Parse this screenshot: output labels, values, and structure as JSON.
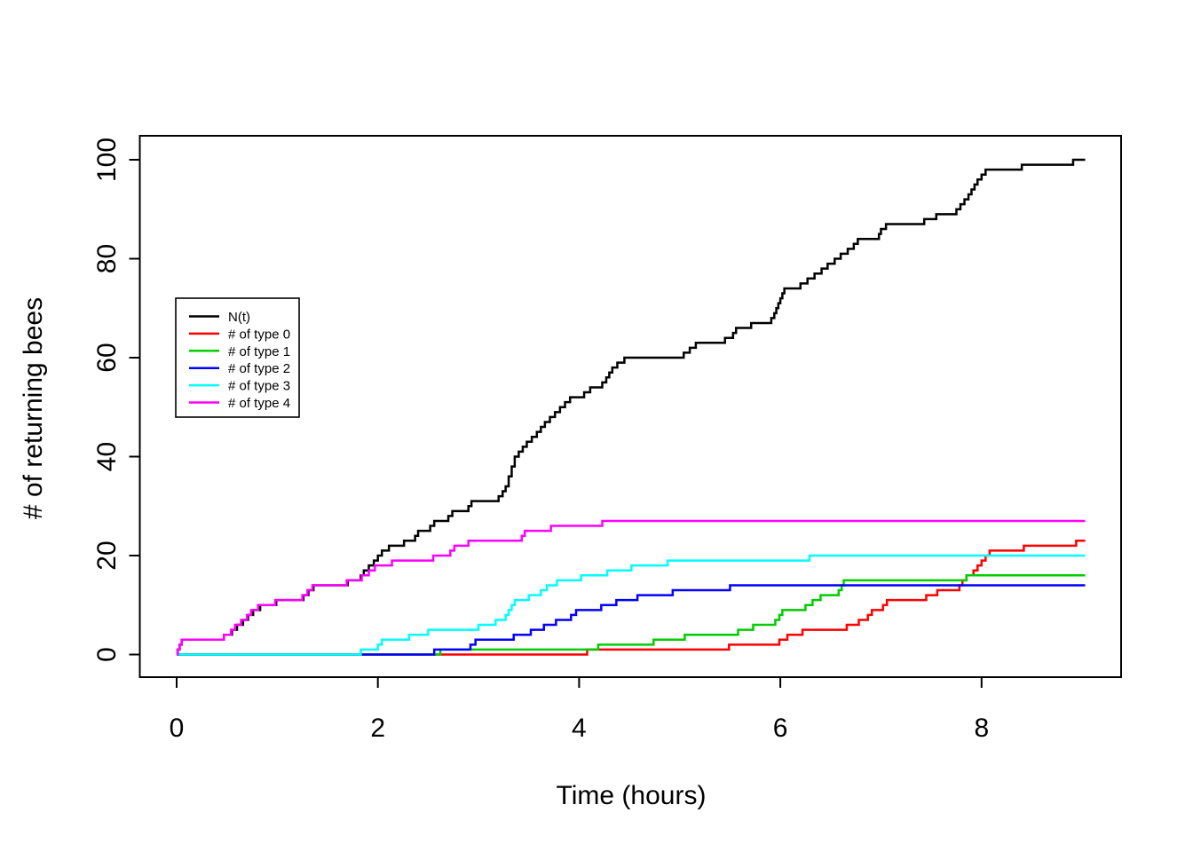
{
  "chart_data": {
    "type": "line",
    "interpolation": "step-after",
    "title": "",
    "xlabel": "Time (hours)",
    "ylabel": "# of returning bees",
    "x_ticks": [
      0,
      2,
      4,
      6,
      8
    ],
    "y_ticks": [
      0,
      20,
      40,
      60,
      80,
      100
    ],
    "xlim": [
      -0.37,
      9.39
    ],
    "ylim": [
      -4.2,
      104.2
    ],
    "x_start": 0,
    "x_end": 9.03,
    "start_value": 0,
    "grid": false,
    "legend_position": "upper-left-inside",
    "series": [
      {
        "name": "N(t)",
        "color": "#000000",
        "final_value": 100,
        "points": [
          [
            0.01,
            1
          ],
          [
            0.03,
            2
          ],
          [
            0.05,
            3
          ],
          [
            0.47,
            4
          ],
          [
            0.55,
            5
          ],
          [
            0.6,
            6
          ],
          [
            0.66,
            7
          ],
          [
            0.71,
            8
          ],
          [
            0.76,
            9
          ],
          [
            0.83,
            10
          ],
          [
            0.99,
            11
          ],
          [
            1.26,
            12
          ],
          [
            1.31,
            13
          ],
          [
            1.36,
            14
          ],
          [
            1.7,
            15
          ],
          [
            1.83,
            16
          ],
          [
            1.86,
            17
          ],
          [
            1.91,
            18
          ],
          [
            1.96,
            19
          ],
          [
            2.0,
            20
          ],
          [
            2.04,
            21
          ],
          [
            2.11,
            22
          ],
          [
            2.26,
            23
          ],
          [
            2.37,
            24
          ],
          [
            2.4,
            25
          ],
          [
            2.52,
            26
          ],
          [
            2.56,
            27
          ],
          [
            2.7,
            28
          ],
          [
            2.74,
            29
          ],
          [
            2.9,
            30
          ],
          [
            2.93,
            31
          ],
          [
            3.2,
            32
          ],
          [
            3.24,
            33
          ],
          [
            3.27,
            34
          ],
          [
            3.3,
            36
          ],
          [
            3.33,
            38
          ],
          [
            3.36,
            40
          ],
          [
            3.4,
            41
          ],
          [
            3.44,
            42
          ],
          [
            3.48,
            43
          ],
          [
            3.53,
            44
          ],
          [
            3.58,
            45
          ],
          [
            3.62,
            46
          ],
          [
            3.66,
            47
          ],
          [
            3.71,
            48
          ],
          [
            3.76,
            49
          ],
          [
            3.81,
            50
          ],
          [
            3.86,
            51
          ],
          [
            3.91,
            52
          ],
          [
            4.05,
            53
          ],
          [
            4.11,
            54
          ],
          [
            4.23,
            55
          ],
          [
            4.27,
            56
          ],
          [
            4.3,
            57
          ],
          [
            4.33,
            58
          ],
          [
            4.38,
            59
          ],
          [
            4.45,
            60
          ],
          [
            5.04,
            61
          ],
          [
            5.1,
            62
          ],
          [
            5.16,
            63
          ],
          [
            5.45,
            64
          ],
          [
            5.53,
            65
          ],
          [
            5.56,
            66
          ],
          [
            5.71,
            67
          ],
          [
            5.91,
            68
          ],
          [
            5.94,
            69
          ],
          [
            5.96,
            70
          ],
          [
            5.98,
            71
          ],
          [
            6.0,
            72
          ],
          [
            6.02,
            73
          ],
          [
            6.04,
            74
          ],
          [
            6.2,
            75
          ],
          [
            6.27,
            76
          ],
          [
            6.34,
            77
          ],
          [
            6.41,
            78
          ],
          [
            6.47,
            79
          ],
          [
            6.54,
            80
          ],
          [
            6.6,
            81
          ],
          [
            6.67,
            82
          ],
          [
            6.73,
            83
          ],
          [
            6.77,
            84
          ],
          [
            6.98,
            85
          ],
          [
            7.0,
            86
          ],
          [
            7.05,
            87
          ],
          [
            7.43,
            88
          ],
          [
            7.55,
            89
          ],
          [
            7.75,
            90
          ],
          [
            7.79,
            91
          ],
          [
            7.83,
            92
          ],
          [
            7.87,
            93
          ],
          [
            7.9,
            94
          ],
          [
            7.93,
            95
          ],
          [
            7.96,
            96
          ],
          [
            8.0,
            97
          ],
          [
            8.04,
            98
          ],
          [
            8.4,
            99
          ],
          [
            8.91,
            100
          ]
        ]
      },
      {
        "name": "# of type 0",
        "color": "#FF0000",
        "final_value": 23,
        "points": [
          [
            4.08,
            1
          ],
          [
            5.49,
            2
          ],
          [
            5.99,
            3
          ],
          [
            6.07,
            4
          ],
          [
            6.22,
            5
          ],
          [
            6.66,
            6
          ],
          [
            6.78,
            7
          ],
          [
            6.87,
            8
          ],
          [
            6.91,
            9
          ],
          [
            7.02,
            10
          ],
          [
            7.06,
            11
          ],
          [
            7.45,
            12
          ],
          [
            7.56,
            13
          ],
          [
            7.78,
            14
          ],
          [
            7.81,
            15
          ],
          [
            7.85,
            16
          ],
          [
            7.92,
            17
          ],
          [
            7.96,
            18
          ],
          [
            8.0,
            19
          ],
          [
            8.04,
            20
          ],
          [
            8.08,
            21
          ],
          [
            8.42,
            22
          ],
          [
            8.94,
            23
          ]
        ]
      },
      {
        "name": "# of type 1",
        "color": "#00CD00",
        "final_value": 16,
        "points": [
          [
            2.62,
            1
          ],
          [
            4.19,
            2
          ],
          [
            4.74,
            3
          ],
          [
            5.05,
            4
          ],
          [
            5.58,
            5
          ],
          [
            5.73,
            6
          ],
          [
            5.95,
            7
          ],
          [
            5.99,
            8
          ],
          [
            6.02,
            9
          ],
          [
            6.25,
            10
          ],
          [
            6.32,
            11
          ],
          [
            6.4,
            12
          ],
          [
            6.58,
            13
          ],
          [
            6.61,
            14
          ],
          [
            6.63,
            15
          ],
          [
            7.85,
            16
          ]
        ]
      },
      {
        "name": "# of type 2",
        "color": "#0000FF",
        "final_value": 14,
        "points": [
          [
            2.56,
            1
          ],
          [
            2.92,
            2
          ],
          [
            2.97,
            3
          ],
          [
            3.35,
            4
          ],
          [
            3.52,
            5
          ],
          [
            3.65,
            6
          ],
          [
            3.77,
            7
          ],
          [
            3.92,
            8
          ],
          [
            3.97,
            9
          ],
          [
            4.22,
            10
          ],
          [
            4.37,
            11
          ],
          [
            4.58,
            12
          ],
          [
            4.93,
            13
          ],
          [
            5.5,
            14
          ]
        ]
      },
      {
        "name": "# of type 3",
        "color": "#00FFFF",
        "final_value": 20,
        "points": [
          [
            1.83,
            1
          ],
          [
            2.0,
            2
          ],
          [
            2.04,
            3
          ],
          [
            2.31,
            4
          ],
          [
            2.5,
            5
          ],
          [
            3.0,
            6
          ],
          [
            3.17,
            7
          ],
          [
            3.27,
            8
          ],
          [
            3.3,
            9
          ],
          [
            3.33,
            10
          ],
          [
            3.36,
            11
          ],
          [
            3.5,
            12
          ],
          [
            3.62,
            13
          ],
          [
            3.68,
            14
          ],
          [
            3.78,
            15
          ],
          [
            4.02,
            16
          ],
          [
            4.28,
            17
          ],
          [
            4.52,
            18
          ],
          [
            4.88,
            19
          ],
          [
            6.29,
            20
          ]
        ]
      },
      {
        "name": "# of type 4",
        "color": "#FF00FF",
        "final_value": 27,
        "points": [
          [
            0.01,
            1
          ],
          [
            0.03,
            2
          ],
          [
            0.05,
            3
          ],
          [
            0.47,
            4
          ],
          [
            0.54,
            5
          ],
          [
            0.58,
            6
          ],
          [
            0.64,
            7
          ],
          [
            0.7,
            8
          ],
          [
            0.74,
            9
          ],
          [
            0.81,
            10
          ],
          [
            0.98,
            11
          ],
          [
            1.25,
            12
          ],
          [
            1.3,
            13
          ],
          [
            1.35,
            14
          ],
          [
            1.69,
            15
          ],
          [
            1.84,
            16
          ],
          [
            1.91,
            17
          ],
          [
            1.97,
            18
          ],
          [
            2.14,
            19
          ],
          [
            2.55,
            20
          ],
          [
            2.72,
            21
          ],
          [
            2.76,
            22
          ],
          [
            2.9,
            23
          ],
          [
            3.43,
            24
          ],
          [
            3.46,
            25
          ],
          [
            3.72,
            26
          ],
          [
            4.23,
            27
          ]
        ]
      }
    ]
  }
}
